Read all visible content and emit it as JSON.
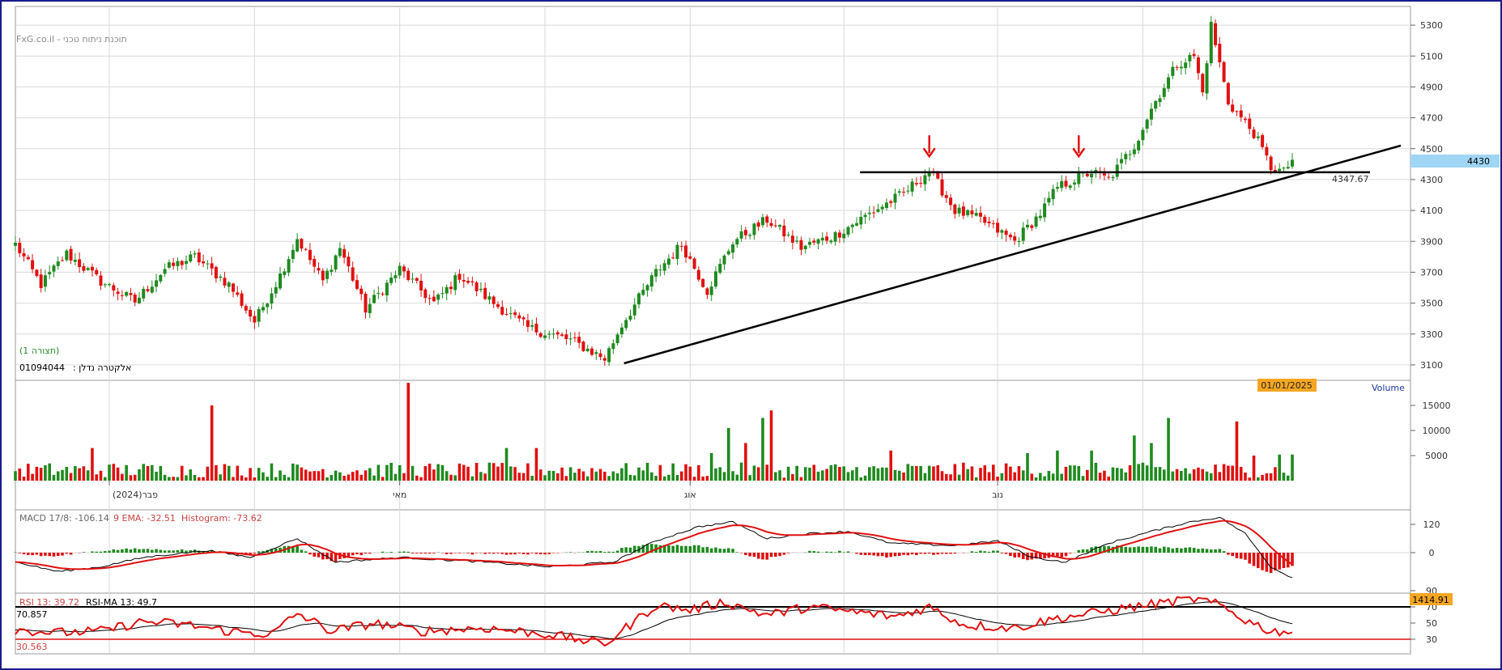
{
  "watermark": "FxG.co.il - תוכנת ניתוח טכני",
  "instrument": {
    "name": "אלקטרה נדלן",
    "id": "01094044",
    "view": "(תצורה 1)"
  },
  "cursor_date": "01/01/2025",
  "last_price": "4430",
  "level_label": "4347.67",
  "volume_label": "Volume",
  "months": [
    "(2024)פבר",
    "מאי",
    "אוג",
    "נוב"
  ],
  "macd_legend": {
    "macd": "MACD 17/8: -106.14",
    "ema": "9 EMA: -32.51",
    "hist": "Histogram: -73.62"
  },
  "rsi_legend": {
    "rsi": "RSI 13: 39.72",
    "ma": "RSI-MA 13: 49.7"
  },
  "rsi_values": {
    "upper": "70.857",
    "lower": "30.563",
    "marker": "1414.91"
  },
  "colors": {
    "up": "#1f8a1f",
    "down": "#e01010",
    "grid": "#d9d9d9",
    "price_tag": "#9fd5f5",
    "date_tag": "#f5a623",
    "rsi_line": "#e01010"
  },
  "chart_data": [
    {
      "type": "candlestick",
      "title": "",
      "ylim": [
        3000,
        5400
      ],
      "yticks": [
        3100,
        3300,
        3500,
        3700,
        3900,
        4100,
        4300,
        4500,
        4700,
        4900,
        5100,
        5300
      ],
      "anchors": [
        [
          0,
          3880
        ],
        [
          6,
          3620
        ],
        [
          12,
          3820
        ],
        [
          20,
          3640
        ],
        [
          28,
          3510
        ],
        [
          35,
          3720
        ],
        [
          42,
          3800
        ],
        [
          50,
          3620
        ],
        [
          56,
          3380
        ],
        [
          62,
          3680
        ],
        [
          66,
          3920
        ],
        [
          72,
          3640
        ],
        [
          76,
          3860
        ],
        [
          82,
          3460
        ],
        [
          90,
          3720
        ],
        [
          98,
          3500
        ],
        [
          104,
          3680
        ],
        [
          112,
          3500
        ],
        [
          120,
          3340
        ],
        [
          130,
          3260
        ],
        [
          138,
          3140
        ],
        [
          142,
          3360
        ],
        [
          150,
          3700
        ],
        [
          156,
          3880
        ],
        [
          162,
          3580
        ],
        [
          168,
          3900
        ],
        [
          176,
          4040
        ],
        [
          184,
          3860
        ],
        [
          192,
          3940
        ],
        [
          200,
          4080
        ],
        [
          208,
          4210
        ],
        [
          214,
          4360
        ],
        [
          220,
          4100
        ],
        [
          226,
          4040
        ],
        [
          234,
          3900
        ],
        [
          240,
          4080
        ],
        [
          244,
          4250
        ],
        [
          252,
          4350
        ],
        [
          256,
          4300
        ],
        [
          262,
          4520
        ],
        [
          266,
          4760
        ],
        [
          272,
          5050
        ],
        [
          276,
          5100
        ],
        [
          278,
          4860
        ],
        [
          280,
          5300
        ],
        [
          284,
          4800
        ],
        [
          290,
          4600
        ],
        [
          294,
          4380
        ],
        [
          297,
          4347
        ],
        [
          299,
          4430
        ]
      ],
      "horizontal_line": 4347.67,
      "trendline": [
        [
          141,
          3110
        ],
        [
          316,
          4520
        ]
      ],
      "arrows": [
        214,
        249
      ]
    },
    {
      "type": "bar",
      "title": "Volume",
      "ylim": [
        0,
        20000
      ],
      "yticks": [
        5000,
        10000,
        15000
      ],
      "spikes": [
        [
          46,
          15000
        ],
        [
          92,
          19500
        ],
        [
          115,
          6500
        ],
        [
          122,
          6500
        ],
        [
          163,
          5500
        ],
        [
          167,
          10500
        ],
        [
          171,
          7500
        ],
        [
          175,
          12500
        ],
        [
          177,
          14000
        ],
        [
          205,
          6000
        ],
        [
          237,
          5500
        ],
        [
          244,
          6000
        ],
        [
          252,
          6000
        ],
        [
          262,
          9000
        ],
        [
          266,
          7500
        ],
        [
          270,
          12500
        ],
        [
          286,
          11800
        ],
        [
          290,
          5000
        ],
        [
          296,
          5200
        ],
        [
          299,
          5200
        ],
        [
          18,
          6500
        ]
      ]
    },
    {
      "type": "line",
      "title": "MACD 17/8",
      "series": [
        {
          "name": "MACD 17/8"
        },
        {
          "name": "9 EMA"
        },
        {
          "name": "Histogram"
        }
      ],
      "ylim": [
        -200,
        200
      ],
      "yticks": [
        0,
        120
      ],
      "anchors": [
        [
          0,
          -40
        ],
        [
          10,
          -80
        ],
        [
          20,
          -60
        ],
        [
          30,
          -20
        ],
        [
          45,
          10
        ],
        [
          55,
          -20
        ],
        [
          66,
          60
        ],
        [
          75,
          -40
        ],
        [
          90,
          -20
        ],
        [
          110,
          -40
        ],
        [
          125,
          -60
        ],
        [
          140,
          -40
        ],
        [
          150,
          50
        ],
        [
          160,
          110
        ],
        [
          168,
          130
        ],
        [
          176,
          60
        ],
        [
          185,
          80
        ],
        [
          195,
          90
        ],
        [
          205,
          40
        ],
        [
          220,
          30
        ],
        [
          230,
          50
        ],
        [
          238,
          -20
        ],
        [
          246,
          -40
        ],
        [
          256,
          40
        ],
        [
          266,
          90
        ],
        [
          275,
          130
        ],
        [
          282,
          150
        ],
        [
          288,
          80
        ],
        [
          294,
          -60
        ],
        [
          299,
          -106
        ]
      ]
    },
    {
      "type": "line",
      "title": "RSI 13",
      "series": [
        {
          "name": "RSI 13"
        },
        {
          "name": "RSI-MA 13"
        }
      ],
      "ylim": [
        20,
        90
      ],
      "yticks": [
        30,
        50,
        70,
        90
      ],
      "levels": [
        70.857,
        30.563
      ],
      "anchors": [
        [
          0,
          42
        ],
        [
          10,
          38
        ],
        [
          20,
          40
        ],
        [
          30,
          52
        ],
        [
          40,
          48
        ],
        [
          50,
          40
        ],
        [
          60,
          36
        ],
        [
          66,
          62
        ],
        [
          74,
          40
        ],
        [
          84,
          50
        ],
        [
          95,
          40
        ],
        [
          110,
          44
        ],
        [
          125,
          36
        ],
        [
          138,
          24
        ],
        [
          142,
          40
        ],
        [
          150,
          72
        ],
        [
          158,
          66
        ],
        [
          166,
          76
        ],
        [
          176,
          60
        ],
        [
          186,
          70
        ],
        [
          196,
          64
        ],
        [
          206,
          58
        ],
        [
          214,
          70
        ],
        [
          222,
          48
        ],
        [
          234,
          44
        ],
        [
          244,
          56
        ],
        [
          252,
          62
        ],
        [
          262,
          70
        ],
        [
          270,
          76
        ],
        [
          276,
          80
        ],
        [
          282,
          72
        ],
        [
          288,
          54
        ],
        [
          294,
          40
        ],
        [
          299,
          39.7
        ]
      ]
    }
  ]
}
